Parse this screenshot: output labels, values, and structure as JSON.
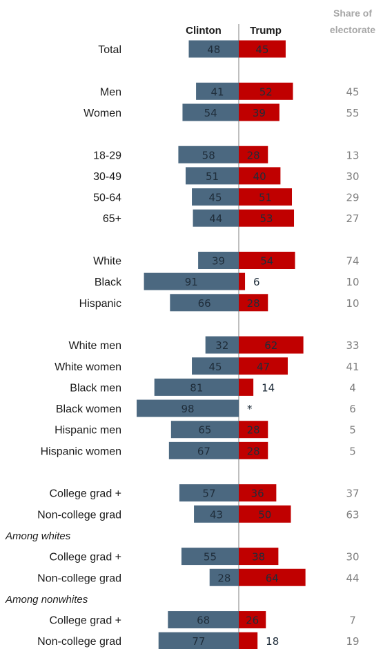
{
  "headers": {
    "clinton": "Clinton",
    "trump": "Trump",
    "share_line1": "Share of",
    "share_line2": "electorate"
  },
  "colors": {
    "clinton": "#4b6880",
    "trump": "#c00000",
    "divider": "#7f7f7f",
    "share_text": "#7f7f7f"
  },
  "chart_data": {
    "type": "bar",
    "orientation": "diverging-horizontal",
    "series": [
      {
        "name": "Clinton",
        "values": [
          48,
          41,
          54,
          58,
          51,
          45,
          44,
          39,
          91,
          66,
          32,
          45,
          81,
          98,
          65,
          67,
          57,
          43,
          55,
          28,
          68,
          77
        ]
      },
      {
        "name": "Trump",
        "values": [
          45,
          52,
          39,
          28,
          40,
          51,
          53,
          54,
          6,
          28,
          62,
          47,
          14,
          null,
          28,
          28,
          36,
          50,
          38,
          64,
          26,
          18
        ]
      }
    ],
    "trump_labels": [
      "45",
      "52",
      "39",
      "28",
      "40",
      "51",
      "53",
      "54",
      "6",
      "28",
      "62",
      "47",
      "14",
      "*",
      "28",
      "28",
      "36",
      "50",
      "38",
      "64",
      "26",
      "18"
    ],
    "categories": [
      "Total",
      "Men",
      "Women",
      "18-29",
      "30-49",
      "50-64",
      "65+",
      "White",
      "Black",
      "Hispanic",
      "White men",
      "White women",
      "Black men",
      "Black women",
      "Hispanic men",
      "Hispanic women",
      "College grad +",
      "Non-college grad",
      "College grad +",
      "Non-college grad",
      "College grad +",
      "Non-college grad"
    ],
    "share_of_electorate": [
      "",
      "45",
      "55",
      "13",
      "30",
      "29",
      "27",
      "74",
      "10",
      "10",
      "33",
      "41",
      "4",
      "6",
      "5",
      "5",
      "37",
      "63",
      "30",
      "44",
      "7",
      "19"
    ],
    "section_labels": [
      "Among whites",
      "Among nonwhites"
    ],
    "rows": [
      {
        "cat": 0,
        "row": 0
      },
      {
        "cat": 1,
        "row": 2
      },
      {
        "cat": 2,
        "row": 3
      },
      {
        "cat": 3,
        "row": 5
      },
      {
        "cat": 4,
        "row": 6
      },
      {
        "cat": 5,
        "row": 7
      },
      {
        "cat": 6,
        "row": 8
      },
      {
        "cat": 7,
        "row": 10
      },
      {
        "cat": 8,
        "row": 11
      },
      {
        "cat": 9,
        "row": 12
      },
      {
        "cat": 10,
        "row": 14
      },
      {
        "cat": 11,
        "row": 15
      },
      {
        "cat": 12,
        "row": 16
      },
      {
        "cat": 13,
        "row": 17
      },
      {
        "cat": 14,
        "row": 18
      },
      {
        "cat": 15,
        "row": 19
      },
      {
        "cat": 16,
        "row": 21
      },
      {
        "cat": 17,
        "row": 22
      },
      {
        "section": 0,
        "row": 23
      },
      {
        "cat": 18,
        "row": 24
      },
      {
        "cat": 19,
        "row": 25
      },
      {
        "section": 1,
        "row": 26
      },
      {
        "cat": 20,
        "row": 27
      },
      {
        "cat": 21,
        "row": 28
      }
    ],
    "grid": false,
    "legend": "none"
  }
}
